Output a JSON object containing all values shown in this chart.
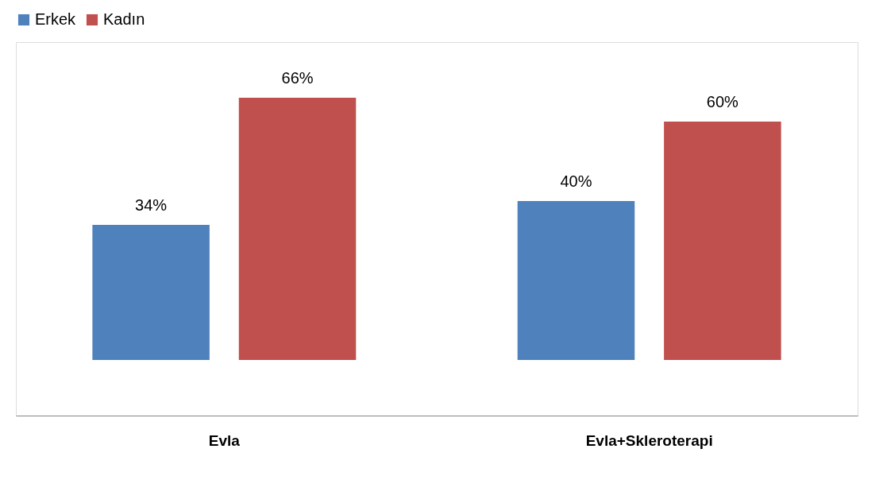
{
  "chart_data": {
    "type": "bar",
    "categories": [
      "Evla",
      "Evla+Skleroterapi"
    ],
    "legend": "top",
    "series": [
      {
        "name": "Erkek",
        "color": "#4f81bd",
        "values": [
          34,
          40
        ],
        "value_labels": [
          "34%",
          "40%"
        ]
      },
      {
        "name": "Kadın",
        "color": "#c0504d",
        "values": [
          66,
          60
        ],
        "value_labels": [
          "66%",
          "60%"
        ]
      }
    ]
  }
}
